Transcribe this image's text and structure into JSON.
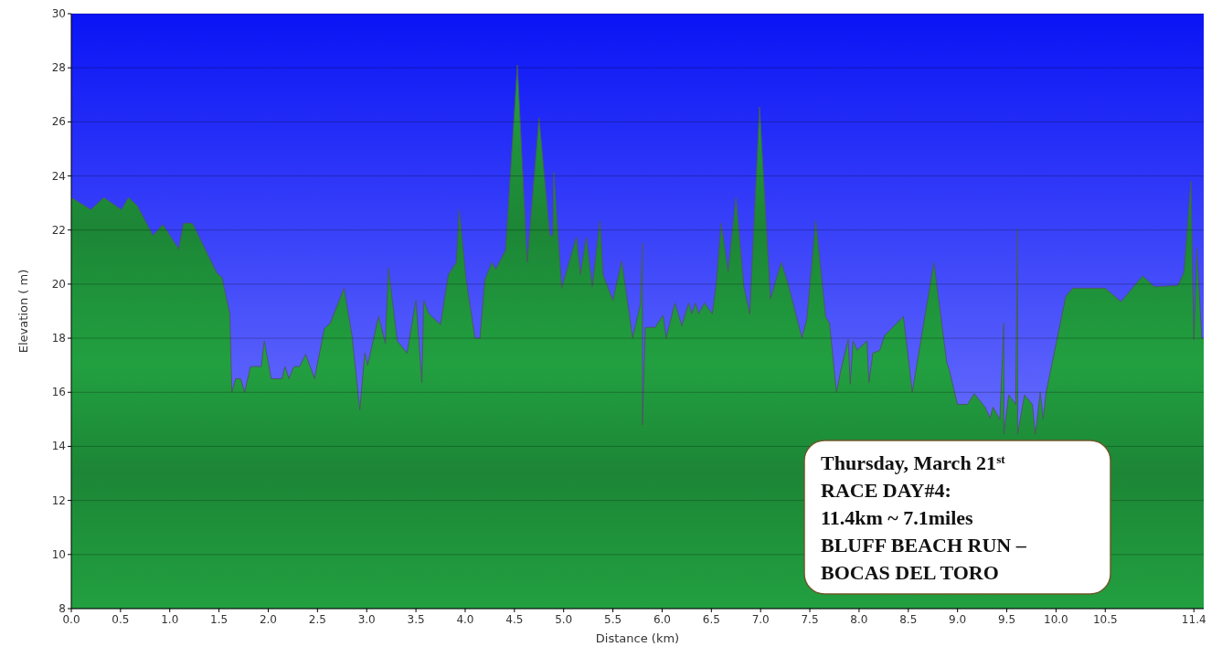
{
  "chart_data": {
    "type": "area",
    "xlabel": "Distance  (km)",
    "ylabel": "Elevation ( m)",
    "xlim": [
      0,
      11.5
    ],
    "ylim": [
      8,
      30
    ],
    "xticks": [
      {
        "value": 0,
        "label": "0.0"
      },
      0.5,
      {
        "value": 1,
        "label": "1.0"
      },
      1.5,
      {
        "value": 2,
        "label": "2.0"
      },
      2.5,
      {
        "value": 3,
        "label": "3.0"
      },
      3.5,
      {
        "value": 4,
        "label": "4.0"
      },
      4.5,
      {
        "value": 5,
        "label": "5.0"
      },
      5.5,
      {
        "value": 6,
        "label": "6.0"
      },
      6.5,
      {
        "value": 7,
        "label": "7.0"
      },
      7.5,
      {
        "value": 8,
        "label": "8.0"
      },
      8.5,
      {
        "value": 9,
        "label": "9.0"
      },
      9.5,
      {
        "value": 10,
        "label": "10.0"
      },
      10.5,
      11.4
    ],
    "yticks": [
      8,
      10,
      12,
      14,
      16,
      18,
      20,
      22,
      24,
      26,
      28,
      30
    ],
    "grid": "y",
    "annotations": [
      "Thursday, March 21$^{st}$\nRACE DAY#4:\n11.4km ~ 7.1miles\nBLUFF BEACH RUN –\nBOCAS DEL TORO"
    ],
    "series": [
      {
        "color": "#22a040",
        "x": [
          0,
          0.2,
          0.33,
          0.51,
          0.58,
          0.67,
          0.83,
          0.93,
          1.09,
          1.14,
          1.23,
          1.48,
          1.53,
          1.61,
          1.63,
          1.67,
          1.72,
          1.76,
          1.82,
          1.93,
          1.96,
          2.03,
          2.14,
          2.17,
          2.21,
          2.26,
          2.32,
          2.38,
          2.47,
          2.57,
          2.63,
          2.77,
          2.85,
          2.93,
          2.98,
          3.01,
          3.12,
          3.19,
          3.22,
          3.26,
          3.31,
          3.41,
          3.5,
          3.56,
          3.58,
          3.63,
          3.75,
          3.83,
          3.91,
          3.94,
          4.01,
          4.1,
          4.15,
          4.2,
          4.27,
          4.31,
          4.41,
          4.53,
          4.63,
          4.75,
          4.86,
          4.89,
          4.9,
          4.98,
          5.13,
          5.17,
          5.23,
          5.29,
          5.37,
          5.4,
          5.5,
          5.59,
          5.7,
          5.78,
          5.8,
          5.8,
          5.83,
          5.93,
          6.01,
          6.04,
          6.13,
          6.2,
          6.27,
          6.3,
          6.34,
          6.37,
          6.43,
          6.51,
          6.55,
          6.6,
          6.67,
          6.75,
          6.83,
          6.89,
          6.99,
          7.1,
          7.21,
          7.28,
          7.42,
          7.47,
          7.56,
          7.66,
          7.7,
          7.77,
          7.82,
          7.89,
          7.91,
          7.94,
          7.98,
          8.08,
          8.1,
          8.14,
          8.21,
          8.26,
          8.45,
          8.54,
          8.76,
          8.89,
          8.91,
          9.0,
          9.1,
          9.17,
          9.28,
          9.33,
          9.36,
          9.43,
          9.47,
          9.47,
          9.52,
          9.59,
          9.61,
          9.61,
          9.68,
          9.76,
          9.79,
          9.84,
          9.87,
          9.9,
          10.1,
          10.17,
          10.5,
          10.66,
          10.88,
          11.0,
          11.24,
          11.3,
          11.37,
          11.4,
          11.43,
          11.48,
          11.5
        ],
        "values": [
          23.2,
          22.75,
          23.2,
          22.75,
          23.2,
          22.9,
          21.8,
          22.2,
          21.3,
          22.25,
          22.25,
          20.4,
          20.25,
          18.9,
          16.0,
          16.5,
          16.5,
          16.0,
          16.95,
          16.95,
          17.9,
          16.5,
          16.5,
          16.95,
          16.5,
          16.95,
          16.95,
          17.4,
          16.5,
          18.35,
          18.55,
          19.85,
          18.1,
          15.35,
          17.45,
          17.0,
          18.8,
          17.8,
          20.6,
          19.4,
          17.9,
          17.45,
          19.4,
          16.35,
          19.4,
          18.9,
          18.5,
          20.35,
          20.8,
          22.75,
          20.15,
          18.0,
          18.0,
          20.15,
          20.8,
          20.55,
          21.25,
          28.1,
          20.8,
          26.15,
          21.8,
          21.8,
          24.15,
          19.85,
          21.75,
          20.35,
          21.75,
          19.9,
          22.35,
          20.35,
          19.4,
          20.85,
          18.0,
          19.25,
          21.5,
          14.8,
          18.4,
          18.4,
          18.85,
          18.0,
          19.3,
          18.45,
          19.3,
          18.9,
          19.3,
          18.9,
          19.3,
          18.9,
          20.0,
          22.25,
          20.45,
          23.2,
          19.9,
          18.9,
          26.55,
          19.45,
          20.8,
          20.0,
          18.0,
          18.7,
          22.35,
          18.8,
          18.55,
          16.0,
          16.9,
          17.95,
          16.3,
          17.9,
          17.55,
          17.9,
          16.35,
          17.45,
          17.55,
          18.1,
          18.8,
          16.0,
          20.8,
          17.1,
          16.9,
          15.55,
          15.55,
          15.95,
          15.45,
          15.05,
          15.45,
          15.0,
          18.55,
          14.45,
          15.9,
          15.55,
          22.05,
          14.45,
          15.9,
          15.55,
          14.45,
          16.0,
          15.0,
          16.0,
          19.55,
          19.85,
          19.85,
          19.35,
          20.3,
          19.9,
          19.95,
          20.45,
          23.8,
          17.95,
          21.35,
          18.0,
          18.0
        ]
      }
    ]
  }
}
